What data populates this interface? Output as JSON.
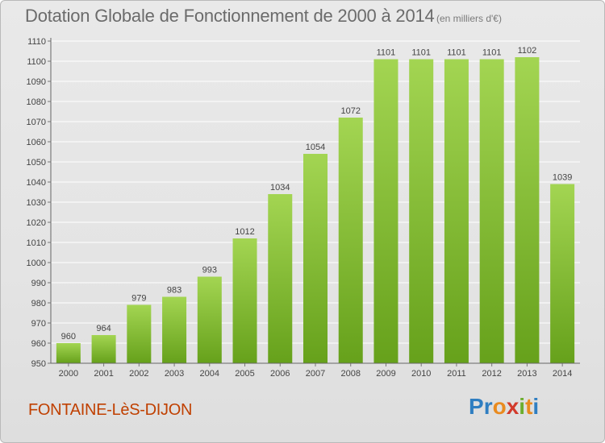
{
  "header": {
    "title": "Dotation Globale de Fonctionnement de 2000 à 2014",
    "subtitle": "(en milliers d'€)"
  },
  "footer": {
    "commune": "FONTAINE-LèS-DIJON",
    "logo": {
      "letters": [
        "P",
        "r",
        "o",
        "x",
        "i",
        "t",
        "i"
      ],
      "colors": [
        "#2f7ec1",
        "#2f7ec1",
        "#e98b1f",
        "#d23a2b",
        "#6cae2e",
        "#e98b1f",
        "#2f7ec1"
      ]
    }
  },
  "chart_data": {
    "type": "bar",
    "title": "Dotation Globale de Fonctionnement de 2000 à 2014",
    "subtitle": "(en milliers d'€)",
    "categories": [
      "2000",
      "2001",
      "2002",
      "2003",
      "2004",
      "2005",
      "2006",
      "2007",
      "2008",
      "2009",
      "2010",
      "2011",
      "2012",
      "2013",
      "2014"
    ],
    "values": [
      960,
      964,
      979,
      983,
      993,
      1012,
      1034,
      1054,
      1072,
      1101,
      1101,
      1101,
      1101,
      1102,
      1039
    ],
    "ylim": [
      950,
      1110
    ],
    "yticks": [
      950,
      960,
      970,
      980,
      990,
      1000,
      1010,
      1020,
      1030,
      1040,
      1050,
      1060,
      1070,
      1080,
      1090,
      1100,
      1110
    ],
    "grid": true,
    "colors": {
      "bar_light": "#9ed04f",
      "bar_dark": "#6aa51d",
      "grid": "#ffffff",
      "axis": "#555555",
      "text": "#444444"
    }
  }
}
